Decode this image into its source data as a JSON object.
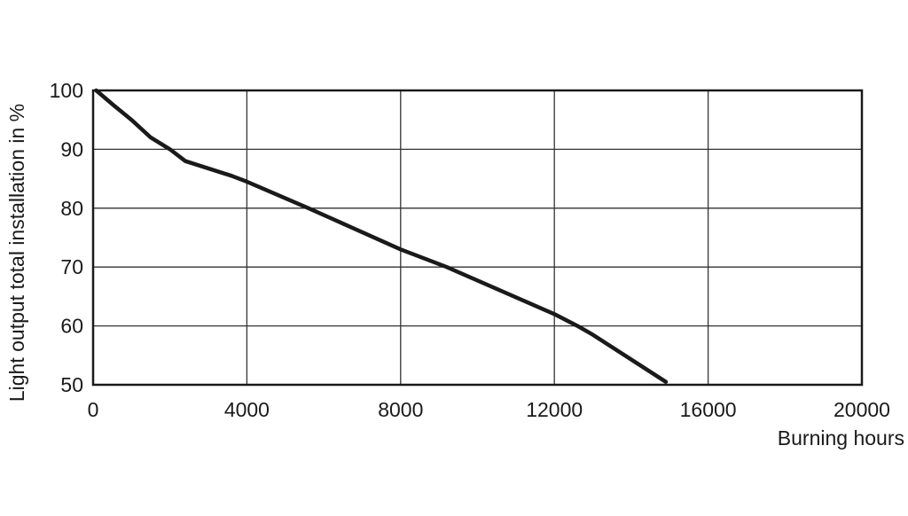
{
  "chart_data": {
    "type": "line",
    "title": "",
    "xlabel": "Burning hours",
    "ylabel": "Light output total installation in %",
    "xlim": [
      0,
      20000
    ],
    "ylim": [
      50,
      100
    ],
    "xticks": [
      "0",
      "4000",
      "8000",
      "12000",
      "16000",
      "20000"
    ],
    "yticks": [
      "50",
      "60",
      "70",
      "80",
      "90",
      "100"
    ],
    "grid": true,
    "line_color": "#1a1a1a",
    "series": [
      {
        "x": [
          80,
          530,
          1000,
          1500,
          2000,
          2400,
          3600,
          4000,
          5600,
          8000,
          9200,
          12000,
          12600,
          13000,
          14900
        ],
        "y": [
          100,
          97.5,
          95,
          92,
          90,
          88,
          85.5,
          84.5,
          80,
          73,
          70,
          62,
          60,
          58.5,
          50.5
        ]
      }
    ]
  }
}
